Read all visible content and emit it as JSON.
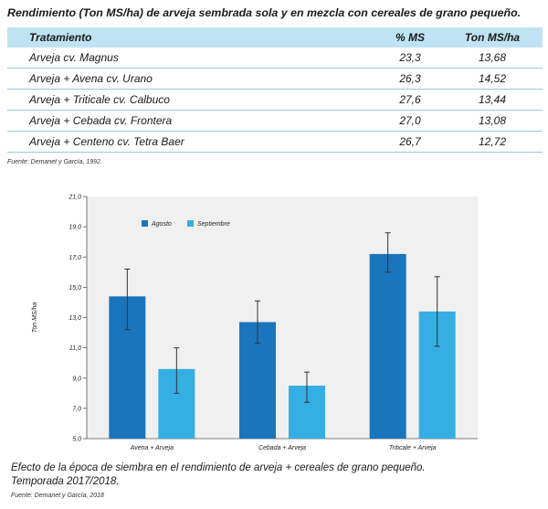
{
  "table": {
    "title": "Rendimiento (Ton MS/ha) de arveja sembrada sola y en mezcla con cereales de grano pequeño.",
    "headers": [
      "Tratamiento",
      "% MS",
      "Ton MS/ha"
    ],
    "rows": [
      [
        "Arveja cv. Magnus",
        "23,3",
        "13,68"
      ],
      [
        "Arveja + Avena cv. Urano",
        "26,3",
        "14,52"
      ],
      [
        "Arveja + Triticale cv. Calbuco",
        "27,6",
        "13,44"
      ],
      [
        "Arveja + Cebada cv. Frontera",
        "27,0",
        "13,08"
      ],
      [
        "Arveja + Centeno cv. Tetra Baer",
        "26,7",
        "12,72"
      ]
    ],
    "source": "Fuente: Demanet y García, 1992."
  },
  "chart_data": {
    "type": "bar",
    "ylabel": "Ton MS/ha",
    "ylim": [
      5.0,
      21.0
    ],
    "yticks": [
      "5,0",
      "7,0",
      "9,0",
      "11,0",
      "13,0",
      "15,0",
      "17,0",
      "19,0",
      "21,0"
    ],
    "categories": [
      "Avena + Arveja",
      "Cebada + Arveja",
      "Triticale + Arveja"
    ],
    "series": [
      {
        "name": "Agosto",
        "color": "#1b75bc",
        "values": [
          14.4,
          12.7,
          17.2
        ],
        "err_low": [
          12.2,
          11.3,
          16.0
        ],
        "err_high": [
          16.2,
          14.1,
          18.6
        ]
      },
      {
        "name": "Septiembre",
        "color": "#35aee4",
        "values": [
          9.6,
          8.5,
          13.4
        ],
        "err_low": [
          8.0,
          7.4,
          11.1
        ],
        "err_high": [
          11.0,
          9.4,
          15.7
        ]
      }
    ],
    "legend": "top-left"
  },
  "caption": {
    "line1": "Efecto de la época de siembra en el rendimiento de arveja + cereales de grano pequeño.",
    "line2": "Temporada 2017/2018.",
    "source": "Fuente: Demanet y García, 2018"
  }
}
